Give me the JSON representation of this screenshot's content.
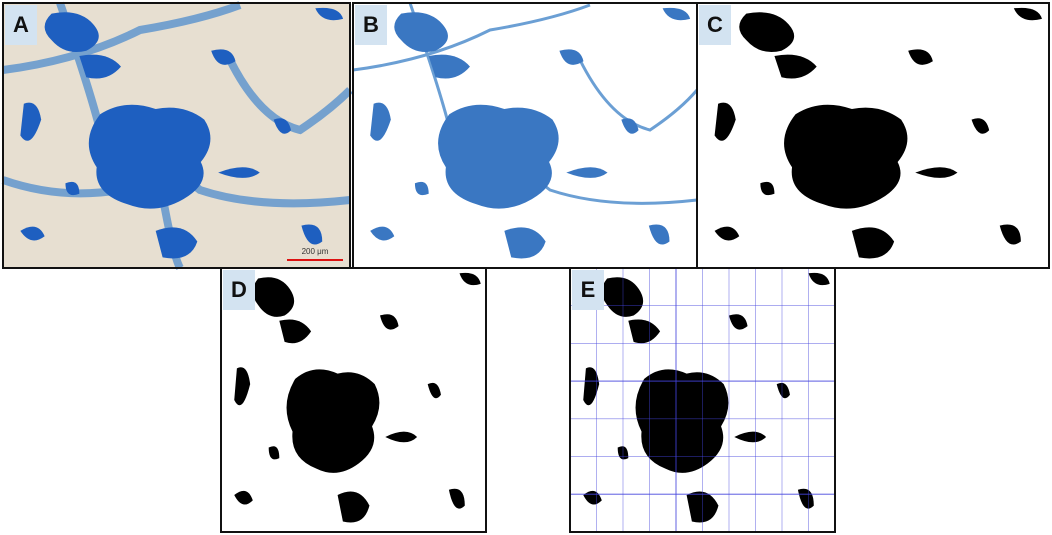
{
  "panels": [
    {
      "label": "A"
    },
    {
      "label": "B"
    },
    {
      "label": "C"
    },
    {
      "label": "D"
    },
    {
      "label": "E"
    }
  ],
  "scale_bar": "200 μm"
}
